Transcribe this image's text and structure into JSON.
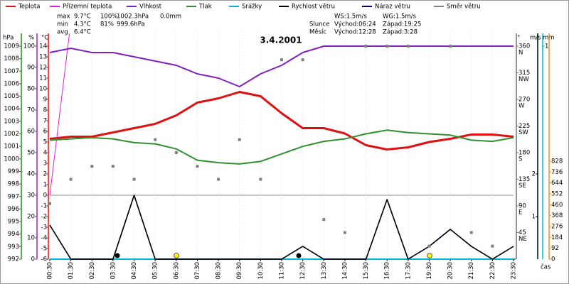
{
  "chart_data": {
    "type": "line",
    "title": "3.4.2001",
    "x_label": "čas",
    "categories": [
      "00:30",
      "01:30",
      "02:30",
      "03:30",
      "04:30",
      "05:30",
      "06:30",
      "07:30",
      "08:30",
      "09:30",
      "10:30",
      "11:30",
      "12:30",
      "13:30",
      "14:30",
      "15:30",
      "16:30",
      "17:30",
      "19:30",
      "20:30",
      "21:30",
      "22:30",
      "23:30"
    ],
    "series": [
      {
        "name": "Teplota",
        "color": "#e01010",
        "axis": "temp",
        "mark": "line",
        "width": 3,
        "values": [
          5.3,
          5.5,
          5.5,
          5.9,
          6.3,
          6.7,
          7.5,
          8.7,
          9.1,
          9.7,
          9.3,
          7.7,
          6.3,
          6.3,
          5.8,
          4.7,
          4.3,
          4.5,
          5.0,
          5.3,
          5.7,
          5.7,
          5.5
        ]
      },
      {
        "name": "Přízemní teplota",
        "color": "#e020e0",
        "axis": "temp",
        "mark": "line",
        "width": 1,
        "values": [
          0,
          16.3,
          null,
          null,
          null,
          null,
          null,
          null,
          null,
          null,
          null,
          null,
          null,
          null,
          null,
          null,
          null,
          null,
          null,
          null,
          null,
          null,
          null
        ]
      },
      {
        "name": "Vlhkost",
        "color": "#8020c0",
        "axis": "pct",
        "mark": "line",
        "width": 2,
        "values": [
          97,
          99,
          97,
          97,
          95,
          93,
          91,
          87,
          85,
          81,
          87,
          91,
          97,
          100,
          100,
          100,
          100,
          100,
          100,
          100,
          100,
          100,
          100
        ]
      },
      {
        "name": "Tlak",
        "color": "#309030",
        "axis": "hpa",
        "mark": "line",
        "width": 2,
        "values": [
          1001.5,
          1001.6,
          1001.7,
          1001.6,
          1001.3,
          1001.2,
          1000.8,
          999.9,
          999.7,
          999.6,
          999.8,
          1000.4,
          1001.0,
          1001.4,
          1001.6,
          1002.0,
          1002.3,
          1002.1,
          1002.0,
          1001.9,
          1001.5,
          1001.4,
          1001.7
        ]
      },
      {
        "name": "Srážky",
        "color": "#00b8d8",
        "axis": "mm",
        "mark": "line",
        "width": 2,
        "values": [
          0,
          0,
          0,
          0,
          0,
          0,
          0,
          0,
          0,
          0,
          0,
          0,
          0,
          0,
          0,
          0,
          0,
          0,
          0,
          0,
          0,
          0,
          0
        ]
      },
      {
        "name": "Náraz větru",
        "color": "#000080",
        "axis": "ms",
        "mark": "line",
        "width": 1.5,
        "values": [
          0.8,
          0,
          0,
          0,
          1.5,
          0,
          0,
          0,
          0,
          0,
          0,
          0,
          0.3,
          0,
          0,
          0,
          1.4,
          0,
          0.3,
          0.7,
          0.3,
          0,
          0.3
        ]
      },
      {
        "name": "Rychlost větru",
        "color": "#000000",
        "axis": "ms",
        "mark": "line",
        "width": 1.5,
        "values": [
          0.8,
          0,
          0,
          0,
          1.5,
          0,
          0,
          0,
          0,
          0,
          0,
          0,
          0.3,
          0,
          0,
          0,
          1.4,
          0,
          0.3,
          0.7,
          0.3,
          0,
          0.3
        ]
      },
      {
        "name": "Směr větru",
        "color": "#808080",
        "axis": "dir",
        "mark": "square",
        "width": 1,
        "values": [
          94,
          135,
          157,
          157,
          135,
          202,
          180,
          157,
          135,
          202,
          135,
          337,
          337,
          67,
          45,
          360,
          360,
          360,
          22,
          360,
          45,
          22,
          null
        ]
      }
    ],
    "axes": {
      "hpa": {
        "label": "hPa",
        "color": "#209020",
        "lim": [
          992,
          1009
        ],
        "ticks": [
          1009,
          1008,
          1007,
          1006,
          1005,
          1004,
          1003,
          1002,
          1001,
          1000,
          999,
          998,
          997,
          996,
          995,
          994,
          993,
          992
        ]
      },
      "pct": {
        "label": "%",
        "color": "#a020c0",
        "lim": [
          0,
          100
        ],
        "ticks": [
          100,
          90,
          80,
          70,
          60,
          50,
          40,
          30,
          20,
          10,
          0
        ]
      },
      "temp": {
        "label": "°C",
        "color": "#e01010",
        "lim": [
          -6,
          14
        ],
        "ticks": [
          14,
          13,
          12,
          11,
          10,
          9,
          8,
          7,
          6,
          5,
          4,
          3,
          2,
          1,
          0,
          -1,
          -2,
          -3,
          -4,
          -5,
          -6
        ]
      },
      "dir": {
        "label": "°",
        "color": "#707070",
        "lim": [
          0,
          360
        ],
        "ticks": [
          360,
          315,
          270,
          225,
          180,
          135,
          90,
          45
        ],
        "tick_names": [
          "N",
          "NW",
          "W",
          "SW",
          "S",
          "SE",
          "E",
          "NE"
        ]
      },
      "ms": {
        "label": "m/s",
        "color": "#000000",
        "lim": [
          0,
          5
        ],
        "ticks": [
          2,
          1
        ]
      },
      "mm": {
        "label": "mm",
        "color": "#00b8d8",
        "lim": [
          0,
          1
        ],
        "ticks": [
          1
        ]
      },
      "rad": {
        "color": "#f09020",
        "lim": [
          0,
          1800
        ],
        "ticks": [
          828,
          736,
          644,
          552,
          460,
          368,
          276,
          184,
          92,
          0
        ]
      }
    },
    "zero_line": 0,
    "stats": [
      {
        "label": "max",
        "temp": "9.7°C",
        "pct": "100%",
        "hpa": "1002.3hPa",
        "mm": "0.0mm"
      },
      {
        "label": "min",
        "temp": "4.3°C",
        "pct": "81%",
        "hpa": "999.6hPa"
      },
      {
        "label": "avg",
        "temp": "6.4°C"
      }
    ],
    "info": {
      "ws": "WS:1.5m/s",
      "wg": "WG:1.5m/s",
      "sun": "Slunce",
      "sun_rise": "Východ:06:24",
      "sun_set": "Západ:19:25",
      "moon": "Měsíc",
      "moon_rise": "Východ:12:28",
      "moon_set": "Západ:3:28"
    }
  }
}
